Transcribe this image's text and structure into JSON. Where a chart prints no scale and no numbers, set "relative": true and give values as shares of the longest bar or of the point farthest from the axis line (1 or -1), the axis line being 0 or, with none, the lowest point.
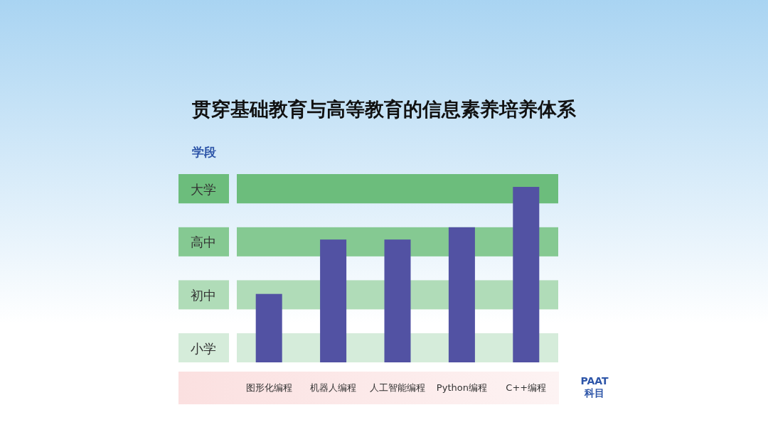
{
  "chart_data": {
    "type": "bar",
    "title": "贯穿基础教育与高等教育的信息素养培养体系",
    "ylabel": "学段",
    "xlabel": "PAAT 科目",
    "categories": [
      "图形化编程",
      "机器人编程",
      "人工智能编程",
      "Python编程",
      "C++编程"
    ],
    "values": [
      0.39,
      0.7,
      0.7,
      0.77,
      1
    ],
    "color": "#5252a3",
    "relative": true,
    "bands": [
      {
        "axis": "y",
        "from": 0,
        "to": 0.166,
        "color": "#d5ecda",
        "label": "小学"
      },
      {
        "axis": "y",
        "from": 0.302,
        "to": 0.468,
        "color": "#b0dcb8",
        "label": "初中"
      },
      {
        "axis": "y",
        "from": 0.604,
        "to": 0.77,
        "color": "#85c992",
        "label": "高中"
      },
      {
        "axis": "y",
        "from": 0.906,
        "to": 1.073,
        "color": "#6cbd7c",
        "label": "大学"
      }
    ]
  }
}
